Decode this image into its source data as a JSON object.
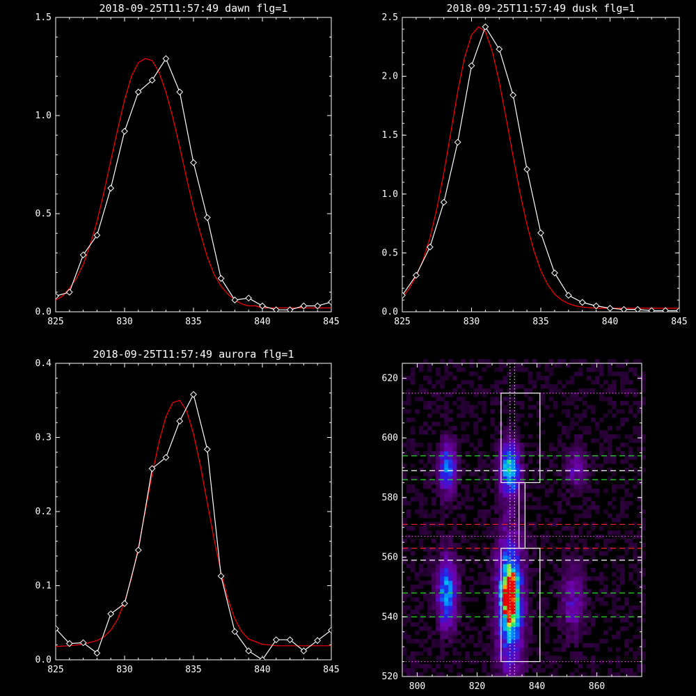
{
  "chart_data": [
    {
      "type": "line",
      "title": "2018-09-25T11:57:49 dawn flg=1",
      "xlim": [
        825,
        845
      ],
      "ylim": [
        0,
        1.5
      ],
      "xticks": [
        825,
        830,
        835,
        840,
        845
      ],
      "yticks": [
        0.0,
        0.5,
        1.0,
        1.5
      ],
      "ytick_labels": [
        "0.0",
        "0.5",
        "1.0",
        "1.5"
      ],
      "series": [
        {
          "color": "#ffffff",
          "marker": "diamond",
          "x": [
            825,
            826,
            827,
            828,
            829,
            830,
            831,
            832,
            833,
            834,
            835,
            836,
            837,
            838,
            839,
            840,
            841,
            842,
            843,
            844,
            845
          ],
          "y": [
            0.08,
            0.1,
            0.29,
            0.39,
            0.63,
            0.92,
            1.12,
            1.18,
            1.29,
            1.12,
            0.76,
            0.48,
            0.17,
            0.06,
            0.07,
            0.03,
            0.01,
            0.01,
            0.03,
            0.03,
            0.05
          ]
        },
        {
          "color": "#ff0000",
          "marker": "none",
          "x": [
            825,
            825.5,
            826,
            826.5,
            827,
            827.5,
            828,
            828.5,
            829,
            829.5,
            830,
            830.5,
            831,
            831.5,
            832,
            832.5,
            833,
            833.5,
            834,
            834.5,
            835,
            835.5,
            836,
            836.5,
            837,
            837.5,
            838,
            838.5,
            839,
            839.5,
            840,
            841,
            842,
            843,
            844,
            845
          ],
          "y": [
            0.06,
            0.08,
            0.12,
            0.17,
            0.24,
            0.34,
            0.46,
            0.61,
            0.77,
            0.93,
            1.08,
            1.2,
            1.27,
            1.29,
            1.28,
            1.22,
            1.12,
            0.99,
            0.84,
            0.68,
            0.53,
            0.4,
            0.28,
            0.19,
            0.13,
            0.09,
            0.06,
            0.04,
            0.03,
            0.03,
            0.02,
            0.02,
            0.02,
            0.02,
            0.02,
            0.02
          ]
        }
      ]
    },
    {
      "type": "line",
      "title": "2018-09-25T11:57:49 dusk flg=1",
      "xlim": [
        825,
        845
      ],
      "ylim": [
        0,
        2.5
      ],
      "xticks": [
        825,
        830,
        835,
        840,
        845
      ],
      "yticks": [
        0.0,
        0.5,
        1.0,
        1.5,
        2.0,
        2.5
      ],
      "ytick_labels": [
        "0.0",
        "0.5",
        "1.0",
        "1.5",
        "2.0",
        "2.5"
      ],
      "series": [
        {
          "color": "#ffffff",
          "marker": "diamond",
          "x": [
            825,
            826,
            827,
            828,
            829,
            830,
            831,
            832,
            833,
            834,
            835,
            836,
            837,
            838,
            839,
            840,
            841,
            842,
            843,
            844,
            845
          ],
          "y": [
            0.14,
            0.31,
            0.55,
            0.93,
            1.44,
            2.09,
            2.42,
            2.23,
            1.84,
            1.21,
            0.67,
            0.33,
            0.14,
            0.08,
            0.05,
            0.03,
            0.02,
            0.02,
            0.01,
            0.01,
            0.01
          ]
        },
        {
          "color": "#ff0000",
          "marker": "none",
          "x": [
            825,
            825.5,
            826,
            826.5,
            827,
            827.5,
            828,
            828.5,
            829,
            829.5,
            830,
            830.5,
            831,
            831.5,
            832,
            832.5,
            833,
            833.5,
            834,
            834.5,
            835,
            835.5,
            836,
            836.5,
            837,
            837.5,
            838,
            839,
            840,
            841,
            842,
            843,
            844,
            845
          ],
          "y": [
            0.12,
            0.2,
            0.3,
            0.44,
            0.63,
            0.88,
            1.18,
            1.52,
            1.87,
            2.16,
            2.35,
            2.42,
            2.38,
            2.21,
            1.95,
            1.64,
            1.32,
            1.01,
            0.74,
            0.52,
            0.35,
            0.23,
            0.15,
            0.1,
            0.07,
            0.05,
            0.04,
            0.03,
            0.03,
            0.03,
            0.03,
            0.03,
            0.03,
            0.03
          ]
        }
      ]
    },
    {
      "type": "line",
      "title": "2018-09-25T11:57:49 aurora flg=1",
      "xlim": [
        825,
        845
      ],
      "ylim": [
        0,
        0.4
      ],
      "xticks": [
        825,
        830,
        835,
        840,
        845
      ],
      "yticks": [
        0.0,
        0.1,
        0.2,
        0.3,
        0.4
      ],
      "ytick_labels": [
        "0.0",
        "0.1",
        "0.2",
        "0.3",
        "0.4"
      ],
      "series": [
        {
          "color": "#ffffff",
          "marker": "diamond",
          "x": [
            825,
            826,
            827,
            828,
            829,
            830,
            831,
            832,
            833,
            834,
            835,
            836,
            837,
            838,
            839,
            840,
            841,
            842,
            843,
            844,
            845
          ],
          "y": [
            0.042,
            0.022,
            0.023,
            0.009,
            0.062,
            0.076,
            0.148,
            0.258,
            0.273,
            0.322,
            0.358,
            0.284,
            0.113,
            0.038,
            0.012,
            0.0,
            0.027,
            0.027,
            0.012,
            0.026,
            0.04
          ]
        },
        {
          "color": "#ff0000",
          "marker": "none",
          "x": [
            825,
            826,
            827,
            828,
            828.5,
            829,
            829.5,
            830,
            830.5,
            831,
            831.5,
            832,
            832.5,
            833,
            833.5,
            834,
            834.5,
            835,
            835.5,
            836,
            836.5,
            837,
            837.5,
            838,
            838.5,
            839,
            840,
            841,
            842,
            843,
            844,
            845
          ],
          "y": [
            0.018,
            0.019,
            0.021,
            0.026,
            0.031,
            0.04,
            0.055,
            0.078,
            0.11,
            0.152,
            0.2,
            0.25,
            0.294,
            0.328,
            0.347,
            0.35,
            0.336,
            0.305,
            0.262,
            0.212,
            0.162,
            0.118,
            0.082,
            0.055,
            0.038,
            0.028,
            0.021,
            0.019,
            0.019,
            0.019,
            0.019,
            0.019
          ]
        }
      ]
    },
    {
      "type": "heatmap",
      "xlim": [
        795,
        875
      ],
      "ylim": [
        520,
        625
      ],
      "xticks": [
        800,
        820,
        840,
        860
      ],
      "yticks": [
        520,
        540,
        560,
        580,
        600,
        620
      ],
      "blobs": [
        {
          "x": 810,
          "y": 548,
          "sx": 2.2,
          "sy": 8,
          "amp": 0.45
        },
        {
          "x": 810,
          "y": 590,
          "sx": 2.0,
          "sy": 6,
          "amp": 0.4
        },
        {
          "x": 831,
          "y": 547,
          "sx": 1.6,
          "sy": 6,
          "amp": 1.0
        },
        {
          "x": 831,
          "y": 545,
          "sx": 3.0,
          "sy": 16,
          "amp": 0.5
        },
        {
          "x": 831,
          "y": 590,
          "sx": 2.2,
          "sy": 6,
          "amp": 0.55
        },
        {
          "x": 852,
          "y": 545,
          "sx": 2.5,
          "sy": 8,
          "amp": 0.2
        },
        {
          "x": 853,
          "y": 590,
          "sx": 2.5,
          "sy": 5,
          "amp": 0.18
        }
      ],
      "boxes": [
        {
          "x0": 828,
          "x1": 841,
          "y0": 525,
          "y1": 563
        },
        {
          "x0": 828,
          "x1": 841,
          "y0": 585,
          "y1": 615
        },
        {
          "x0": 834,
          "x1": 836,
          "y0": 563,
          "y1": 585
        }
      ],
      "hlines": [
        {
          "y": 615,
          "color": "#ff40ff",
          "style": "dotted"
        },
        {
          "y": 525,
          "color": "#ff40ff",
          "style": "dotted"
        },
        {
          "y": 567,
          "color": "#ff40ff",
          "style": "dotted"
        },
        {
          "y": 594,
          "color": "#20e020",
          "style": "dashed"
        },
        {
          "y": 586,
          "color": "#20e020",
          "style": "dashed"
        },
        {
          "y": 548,
          "color": "#20e020",
          "style": "dashed"
        },
        {
          "y": 540,
          "color": "#20e020",
          "style": "dashed"
        },
        {
          "y": 589,
          "color": "#ffffff",
          "style": "dashed"
        },
        {
          "y": 559,
          "color": "#ffffff",
          "style": "dashed"
        },
        {
          "y": 571,
          "color": "#ff2020",
          "style": "dashed"
        },
        {
          "y": 563,
          "color": "#ff2020",
          "style": "dashed"
        }
      ],
      "vlines": [
        {
          "x": 831,
          "color": "#ffffff",
          "style": "dotted"
        },
        {
          "x": 832.5,
          "color": "#ffffff",
          "style": "dotted"
        }
      ]
    }
  ]
}
